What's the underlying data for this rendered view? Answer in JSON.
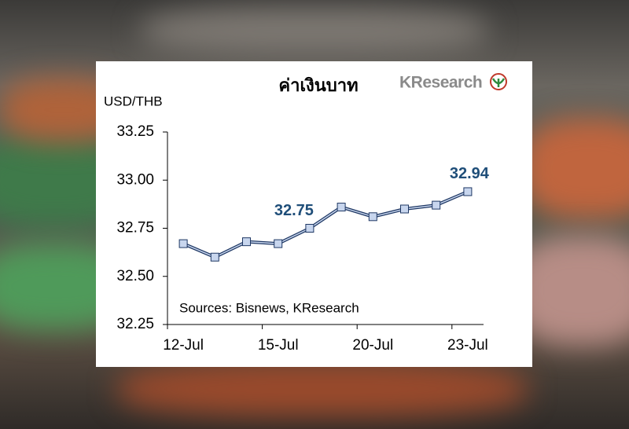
{
  "chart_data": {
    "type": "line",
    "title": "ค่าเงินบาท",
    "y_label": "USD/THB",
    "source": "Sources: Bisnews, KResearch",
    "logo": "KResearch",
    "categories": [
      "12-Jul",
      null,
      null,
      "15-Jul",
      null,
      null,
      "20-Jul",
      null,
      null,
      "23-Jul"
    ],
    "series": [
      {
        "name": "USD/THB",
        "color": "#1f3864",
        "marker_color": "#c8d6ee",
        "values": [
          32.67,
          32.6,
          32.68,
          32.67,
          32.75,
          32.86,
          32.81,
          32.85,
          32.87,
          32.94
        ],
        "value_labels": [
          null,
          null,
          null,
          null,
          "32.75",
          null,
          null,
          null,
          null,
          "32.94"
        ]
      }
    ],
    "ylim": [
      32.25,
      33.25
    ],
    "yticks": [
      32.25,
      {
        "value": 32.5,
        "label": "32.50"
      },
      32.75,
      {
        "value": 33,
        "label": "33.00"
      },
      33.25
    ]
  }
}
